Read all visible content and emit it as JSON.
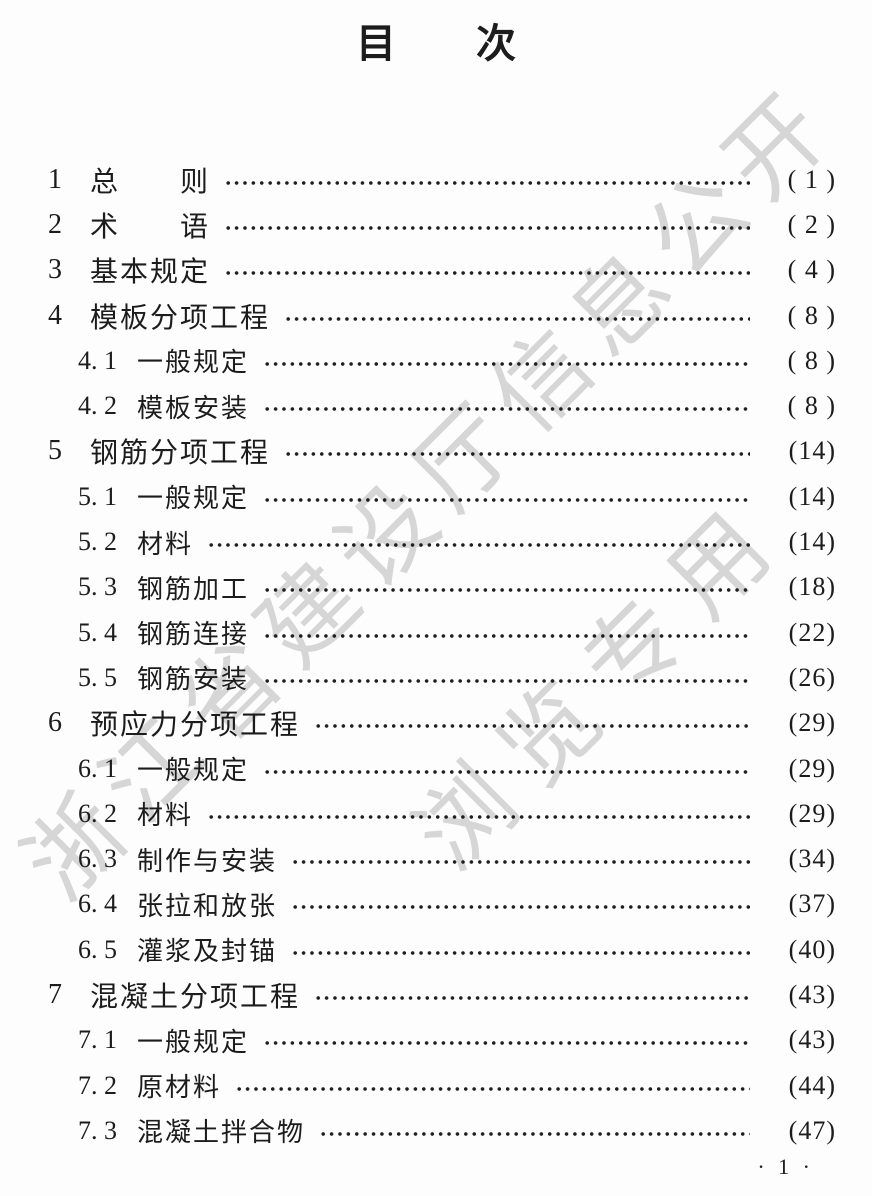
{
  "title": "目　　次",
  "watermark": {
    "line1": "浙江省建设厅信息公开",
    "line2": "浏览专用",
    "color": "#d6d6d6"
  },
  "toc": {
    "entries": [
      {
        "num": "1",
        "title": "总　　则",
        "page": "( 1 )",
        "level": 1
      },
      {
        "num": "2",
        "title": "术　　语",
        "page": "( 2 )",
        "level": 1
      },
      {
        "num": "3",
        "title": "基本规定",
        "page": "( 4 )",
        "level": 1
      },
      {
        "num": "4",
        "title": "模板分项工程",
        "page": "( 8 )",
        "level": 1
      },
      {
        "num": "4. 1",
        "title": "一般规定",
        "page": "( 8 )",
        "level": 2
      },
      {
        "num": "4. 2",
        "title": "模板安装",
        "page": "( 8 )",
        "level": 2
      },
      {
        "num": "5",
        "title": "钢筋分项工程",
        "page": "(14)",
        "level": 1
      },
      {
        "num": "5. 1",
        "title": "一般规定",
        "page": "(14)",
        "level": 2
      },
      {
        "num": "5. 2",
        "title": "材料",
        "page": "(14)",
        "level": 2
      },
      {
        "num": "5. 3",
        "title": "钢筋加工",
        "page": "(18)",
        "level": 2
      },
      {
        "num": "5. 4",
        "title": "钢筋连接",
        "page": "(22)",
        "level": 2
      },
      {
        "num": "5. 5",
        "title": "钢筋安装",
        "page": "(26)",
        "level": 2
      },
      {
        "num": "6",
        "title": "预应力分项工程",
        "page": "(29)",
        "level": 1
      },
      {
        "num": "6. 1",
        "title": "一般规定",
        "page": "(29)",
        "level": 2
      },
      {
        "num": "6. 2",
        "title": "材料",
        "page": "(29)",
        "level": 2
      },
      {
        "num": "6. 3",
        "title": "制作与安装",
        "page": "(34)",
        "level": 2
      },
      {
        "num": "6. 4",
        "title": "张拉和放张",
        "page": "(37)",
        "level": 2
      },
      {
        "num": "6. 5",
        "title": "灌浆及封锚",
        "page": "(40)",
        "level": 2
      },
      {
        "num": "7",
        "title": "混凝土分项工程",
        "page": "(43)",
        "level": 1
      },
      {
        "num": "7. 1",
        "title": "一般规定",
        "page": "(43)",
        "level": 2
      },
      {
        "num": "7. 2",
        "title": "原材料",
        "page": "(44)",
        "level": 2
      },
      {
        "num": "7. 3",
        "title": "混凝土拌合物",
        "page": "(47)",
        "level": 2
      }
    ]
  },
  "footer": {
    "page_label": "· 1 ·"
  },
  "colors": {
    "text": "#1c1c1c",
    "background": "#fdfdfd",
    "watermark": "#d6d6d6"
  }
}
